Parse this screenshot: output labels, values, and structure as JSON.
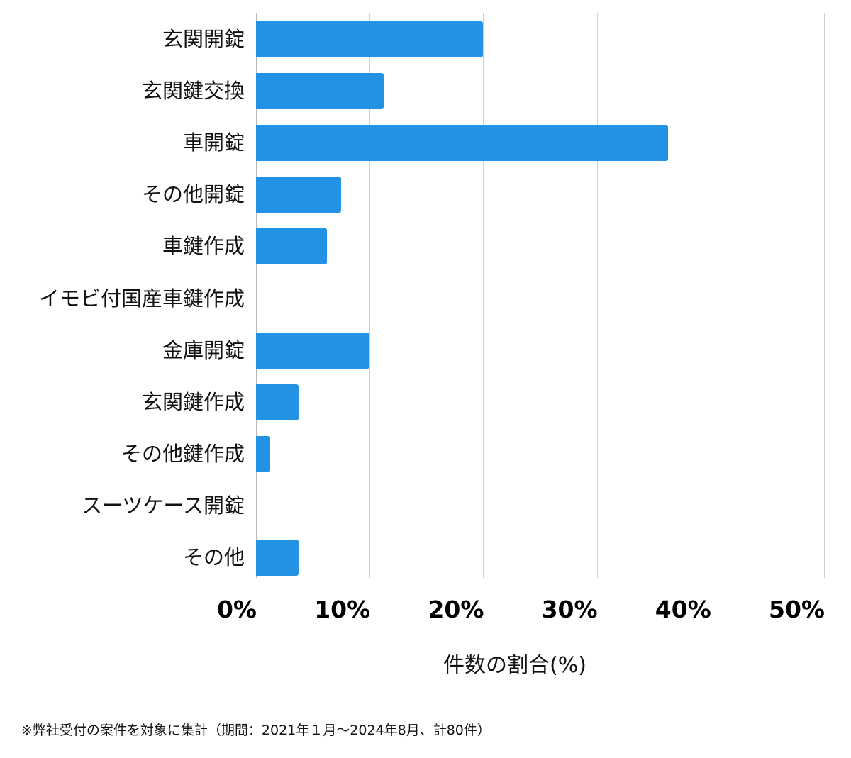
{
  "chart_data": {
    "type": "bar",
    "orientation": "horizontal",
    "title": "",
    "xlabel": "件数の割合(%)",
    "ylabel": "",
    "xlim": [
      0,
      50
    ],
    "xticks": [
      "0%",
      "10%",
      "20%",
      "30%",
      "40%",
      "50%"
    ],
    "grid": true,
    "legend": null,
    "bar_color": "#2492e4",
    "categories": [
      "玄関開錠",
      "玄関鍵交換",
      "車開錠",
      "その他開錠",
      "車鍵作成",
      "イモビ付国産車鍵作成",
      "金庫開錠",
      "玄関鍵作成",
      "その他鍵作成",
      "スーツケース開錠",
      "その他"
    ],
    "values": [
      20,
      11.25,
      36.25,
      7.5,
      6.25,
      0,
      10,
      3.75,
      1.25,
      0,
      3.75
    ],
    "footnote": "※弊社受付の案件を対象に集計（期間：2021年１月〜2024年8月、計80件）"
  }
}
